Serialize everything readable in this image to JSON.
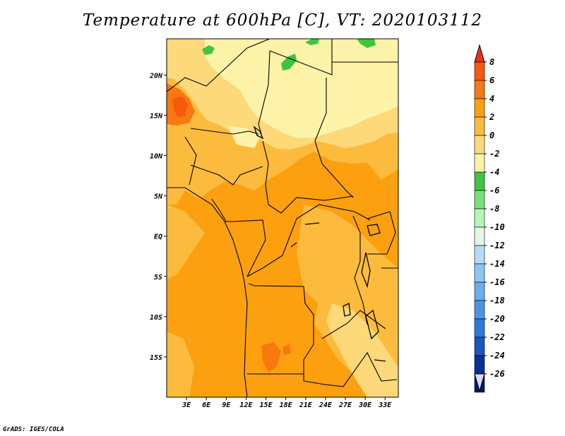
{
  "title": "Temperature at 600hPa [C], VT: 2020103112",
  "credit": "GrADS: IGES/COLA",
  "map": {
    "lon_labels": [
      "3E",
      "6E",
      "9E",
      "12E",
      "15E",
      "18E",
      "21E",
      "24E",
      "27E",
      "30E",
      "33E"
    ],
    "lat_labels": [
      "20N",
      "15N",
      "10N",
      "5N",
      "EQ",
      "5S",
      "10S",
      "15S"
    ],
    "lon_range": [
      0,
      35
    ],
    "lat_range": [
      -20,
      24.5
    ],
    "lon_ticks": [
      3,
      6,
      9,
      12,
      15,
      18,
      21,
      24,
      27,
      30,
      33
    ],
    "lat_ticks": [
      20,
      15,
      10,
      5,
      0,
      -5,
      -10,
      -15
    ]
  },
  "colorbar": {
    "labels": [
      "8",
      "6",
      "4",
      "2",
      "0",
      "-2",
      "-4",
      "-6",
      "-8",
      "-10",
      "-12",
      "-14",
      "-16",
      "-18",
      "-20",
      "-22",
      "-24",
      "-26"
    ],
    "colors": [
      "#f03c0e",
      "#f55a0f",
      "#f9780f",
      "#fca010",
      "#fdbb3e",
      "#fdd97a",
      "#fdf3a8",
      "#3ec53e",
      "#78e078",
      "#b6f4b6",
      "#e2f8e2",
      "#b4dcf8",
      "#8ec6f3",
      "#6aaeee",
      "#4b95e6",
      "#2f78dc",
      "#1856c4",
      "#0b2f96",
      "#061870"
    ]
  },
  "legend_colors": {
    "warm_max": "#f03c0e",
    "cold_min": "#061870",
    "tail_low": "#d8d8f8",
    "tail_high": "#e8321c"
  }
}
